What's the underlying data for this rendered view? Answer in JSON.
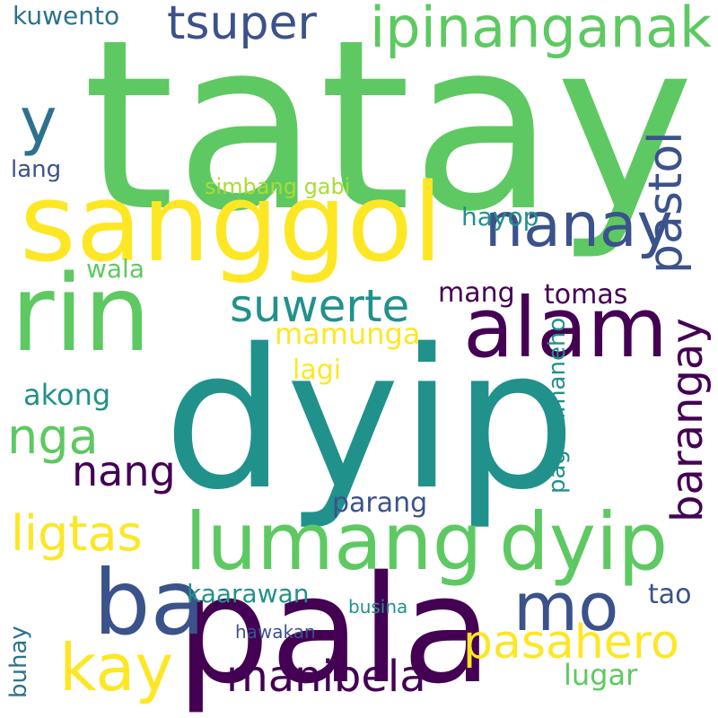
{
  "palette": {
    "c1": "#440154",
    "c2": "#3b528b",
    "c3": "#21918c",
    "c4": "#5ec962",
    "c5": "#fde725",
    "c6": "#2c728e",
    "c7": "#aadc32"
  },
  "words": [
    "tatay",
    "dyip",
    "pala",
    "sanggol",
    "rin",
    "alam",
    "lumang",
    "ba",
    "nanay",
    "ipinanganak",
    "suwerte",
    "pastol",
    "barangay",
    "tsuper",
    "mo",
    "kay",
    "pasahero",
    "manibela",
    "nang",
    "ligtas",
    "nga",
    "mamunga",
    "lagi",
    "akong",
    "lugar",
    "tomas",
    "mang",
    "hayop",
    "wala",
    "kuwento",
    "lang",
    "simbang gabi",
    "parang",
    "tao",
    "kaarawan",
    "y",
    "pagmamaneho",
    "busina",
    "hawakan",
    "buhay"
  ]
}
